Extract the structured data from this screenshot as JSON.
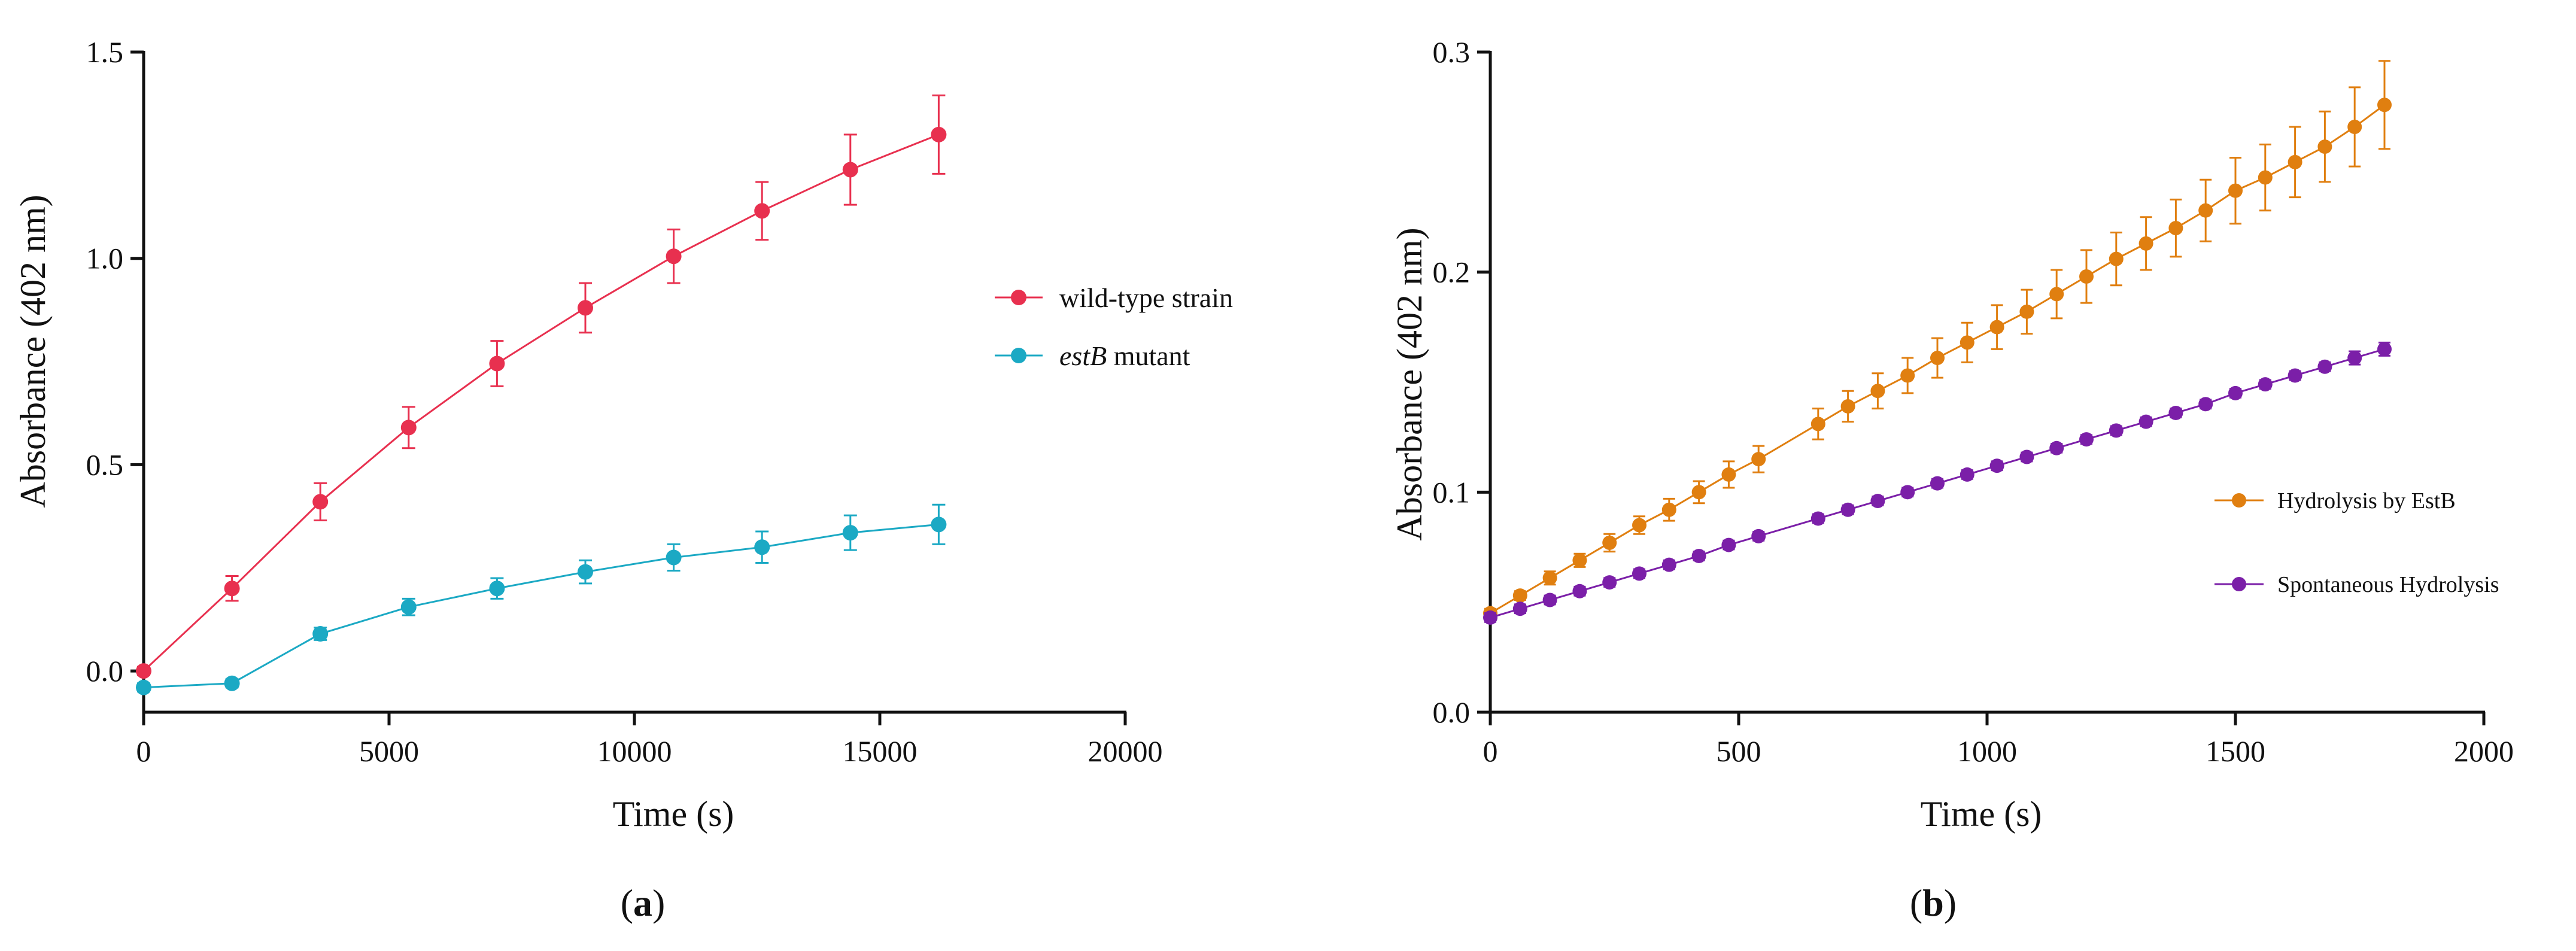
{
  "chart_data": [
    {
      "panel": "a",
      "type": "line",
      "xlabel": "Time (s)",
      "ylabel": "Absorbance (402 nm)",
      "xlim": [
        0,
        20000
      ],
      "ylim": [
        -0.1,
        1.5
      ],
      "xticks": [
        0,
        5000,
        10000,
        15000,
        20000
      ],
      "yticks": [
        0.0,
        0.5,
        1.0,
        1.5
      ],
      "xtick_labels": [
        "0",
        "5000",
        "10000",
        "15000",
        "20000"
      ],
      "ytick_labels": [
        "0.0",
        "0.5",
        "1.0",
        "1.5"
      ],
      "legend_position": "right",
      "caption": {
        "open": "(",
        "letter": "a",
        "close": ")"
      },
      "series": [
        {
          "name": "wild-type strain",
          "label_parts": [
            {
              "text": "wild-type strain",
              "italic": false
            }
          ],
          "color": "#E8304F",
          "x": [
            0,
            1800,
            3600,
            5400,
            7200,
            9000,
            10800,
            12600,
            14400,
            16200
          ],
          "y": [
            0.0,
            0.2,
            0.41,
            0.59,
            0.745,
            0.88,
            1.005,
            1.115,
            1.215,
            1.3
          ],
          "err": [
            0.01,
            0.03,
            0.045,
            0.05,
            0.055,
            0.06,
            0.065,
            0.07,
            0.085,
            0.095
          ]
        },
        {
          "name": "estB mutant",
          "label_parts": [
            {
              "text": "estB",
              "italic": true
            },
            {
              "text": " mutant",
              "italic": false
            }
          ],
          "color": "#1BA9C4",
          "x": [
            0,
            1800,
            3600,
            5400,
            7200,
            9000,
            10800,
            12600,
            14400,
            16200
          ],
          "y": [
            -0.04,
            -0.03,
            0.09,
            0.155,
            0.2,
            0.24,
            0.275,
            0.3,
            0.335,
            0.355
          ],
          "err": [
            0.01,
            0.01,
            0.015,
            0.02,
            0.025,
            0.028,
            0.032,
            0.038,
            0.042,
            0.048
          ]
        }
      ]
    },
    {
      "panel": "b",
      "type": "line",
      "xlabel": "Time (s)",
      "ylabel": "Absorbance (402 nm)",
      "xlim": [
        0,
        2000
      ],
      "ylim": [
        0.0,
        0.3
      ],
      "xticks": [
        0,
        500,
        1000,
        1500,
        2000
      ],
      "yticks": [
        0.0,
        0.1,
        0.2,
        0.3
      ],
      "xtick_labels": [
        "0",
        "500",
        "1000",
        "1500",
        "2000"
      ],
      "ytick_labels": [
        "0.0",
        "0.1",
        "0.2",
        "0.3"
      ],
      "legend_position": "right",
      "caption": {
        "open": "(",
        "letter": "b",
        "close": ")"
      },
      "series": [
        {
          "name": "Hydrolysis by EstB",
          "label_parts": [
            {
              "text": "Hydrolysis by EstB",
              "italic": false
            }
          ],
          "color": "#E07F10",
          "x": [
            0,
            60,
            120,
            180,
            240,
            300,
            360,
            420,
            480,
            540,
            660,
            720,
            780,
            840,
            900,
            960,
            1020,
            1080,
            1140,
            1200,
            1260,
            1320,
            1380,
            1440,
            1500,
            1560,
            1620,
            1680,
            1740,
            1800
          ],
          "y": [
            0.045,
            0.053,
            0.061,
            0.069,
            0.077,
            0.085,
            0.092,
            0.1,
            0.108,
            0.115,
            0.131,
            0.139,
            0.146,
            0.153,
            0.161,
            0.168,
            0.175,
            0.182,
            0.19,
            0.198,
            0.206,
            0.213,
            0.22,
            0.228,
            0.237,
            0.243,
            0.25,
            0.257,
            0.266,
            0.276
          ],
          "err": [
            0.002,
            0.002,
            0.003,
            0.003,
            0.004,
            0.004,
            0.005,
            0.005,
            0.006,
            0.006,
            0.007,
            0.007,
            0.008,
            0.008,
            0.009,
            0.009,
            0.01,
            0.01,
            0.011,
            0.012,
            0.012,
            0.012,
            0.013,
            0.014,
            0.015,
            0.015,
            0.016,
            0.016,
            0.018,
            0.02
          ]
        },
        {
          "name": "Spontaneous Hydrolysis",
          "label_parts": [
            {
              "text": "Spontaneous Hydrolysis",
              "italic": false
            }
          ],
          "color": "#7B1FA8",
          "x": [
            0,
            60,
            120,
            180,
            240,
            300,
            360,
            420,
            480,
            540,
            660,
            720,
            780,
            840,
            900,
            960,
            1020,
            1080,
            1140,
            1200,
            1260,
            1320,
            1380,
            1440,
            1500,
            1560,
            1620,
            1680,
            1740,
            1800
          ],
          "y": [
            0.043,
            0.047,
            0.051,
            0.055,
            0.059,
            0.063,
            0.067,
            0.071,
            0.076,
            0.08,
            0.088,
            0.092,
            0.096,
            0.1,
            0.104,
            0.108,
            0.112,
            0.116,
            0.12,
            0.124,
            0.128,
            0.132,
            0.136,
            0.14,
            0.145,
            0.149,
            0.153,
            0.157,
            0.161,
            0.165
          ],
          "err": [
            0.002,
            0.002,
            0.002,
            0.002,
            0.002,
            0.002,
            0.002,
            0.002,
            0.002,
            0.002,
            0.002,
            0.002,
            0.002,
            0.002,
            0.002,
            0.002,
            0.002,
            0.002,
            0.002,
            0.002,
            0.002,
            0.002,
            0.002,
            0.002,
            0.002,
            0.002,
            0.002,
            0.002,
            0.003,
            0.003
          ]
        }
      ]
    }
  ]
}
